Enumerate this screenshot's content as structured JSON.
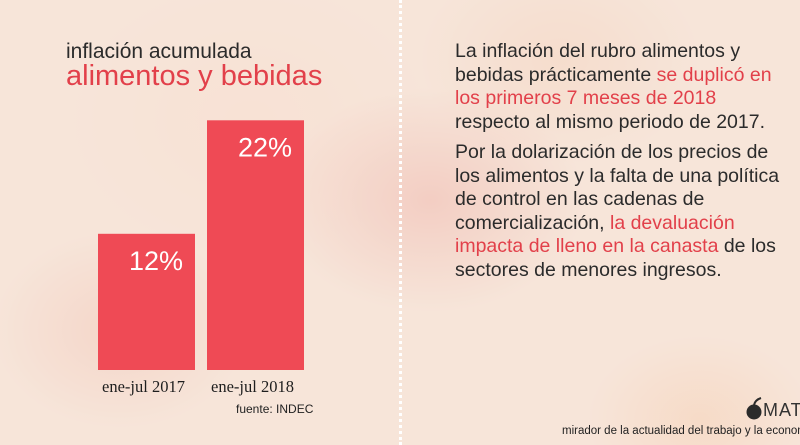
{
  "header": {
    "subtitle": "inflación acumulada",
    "title": "alimentos y bebidas"
  },
  "chart_data": {
    "type": "bar",
    "categories": [
      "ene-jul 2017",
      "ene-jul 2018"
    ],
    "values": [
      12,
      22
    ],
    "value_labels": [
      "12%",
      "22%"
    ],
    "bar_color": "#ef4a55"
  },
  "source": "fuente: INDEC",
  "text": {
    "p1_a": "La inflación del rubro alimentos y bebidas prácticamente ",
    "p1_hl": "se duplicó en los primeros 7 meses de 2018",
    "p1_b": " respecto al mismo periodo de 2017.",
    "p2_a": "Por la dolarización de los precios de los alimentos y la falta de una política de control en las cadenas de comercialización, ",
    "p2_hl": "la devaluación impacta de lleno en la canasta",
    "p2_b": " de los sectores de menores ingresos."
  },
  "brand": {
    "logo_text": "MAT",
    "tagline": "mirador de la actualidad del trabajo y la econom"
  },
  "colors": {
    "accent": "#e2404a",
    "text": "#2b2b2b"
  }
}
